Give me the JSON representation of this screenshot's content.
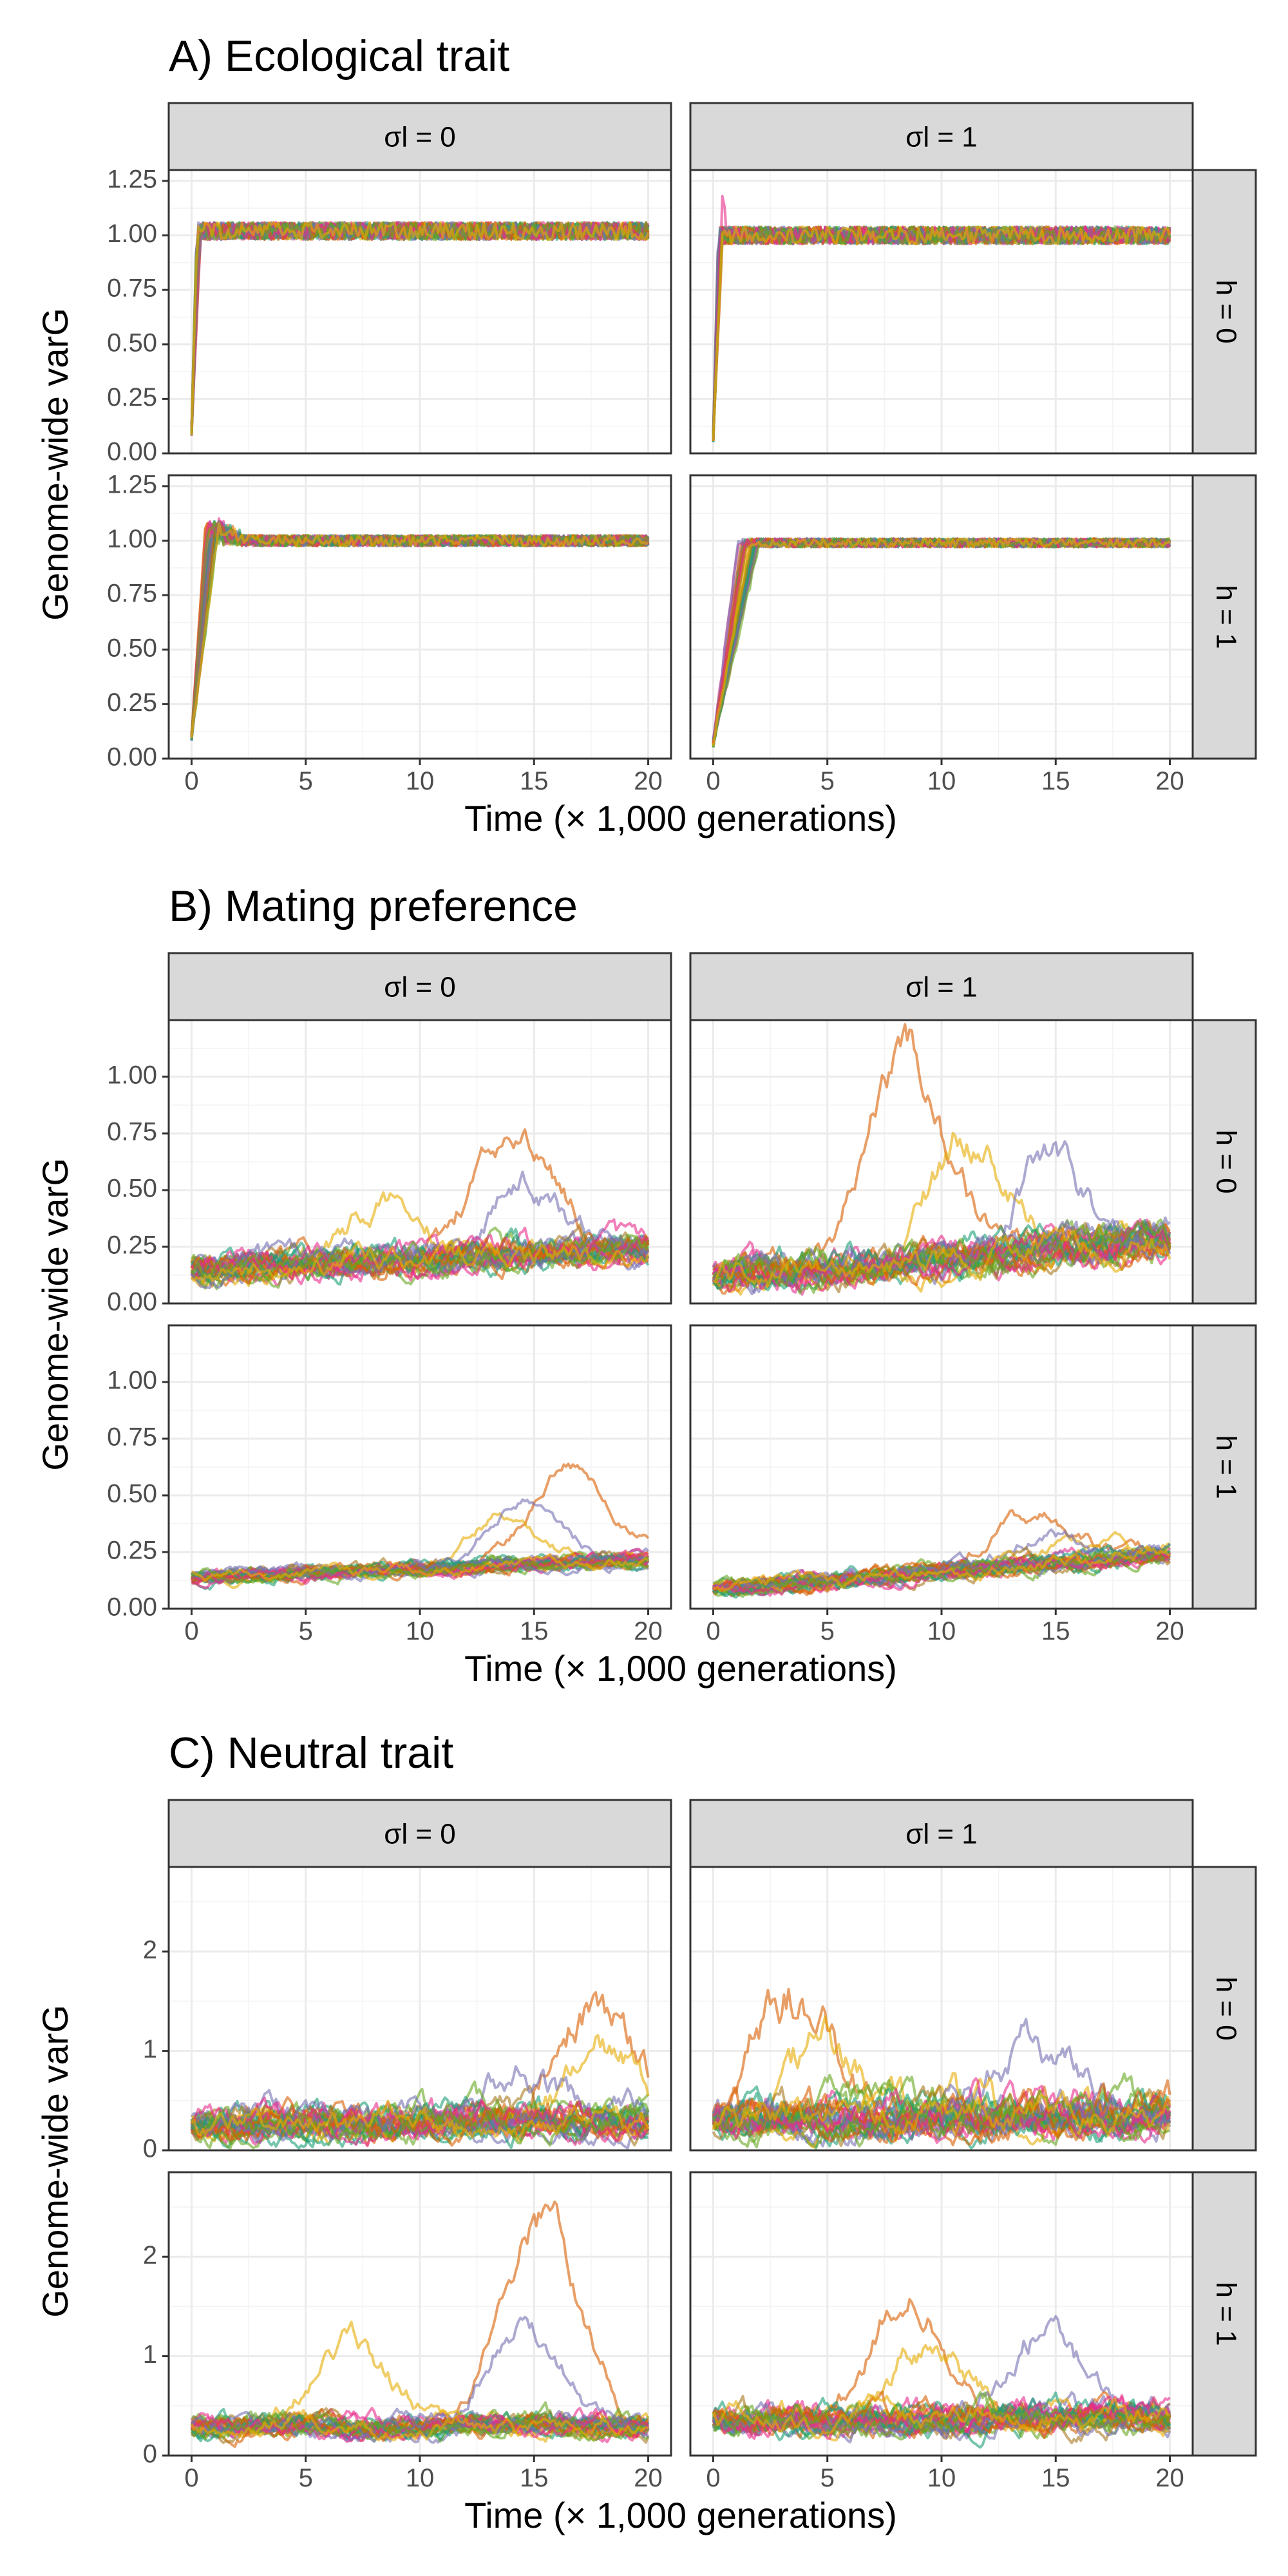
{
  "colors": [
    "#1b9e77",
    "#d95f02",
    "#7570b3",
    "#e7298a",
    "#66a61e",
    "#e6ab02",
    "#a6761d",
    "#1b9e77",
    "#d95f02",
    "#7570b3",
    "#e7298a",
    "#66a61e"
  ],
  "chart_data": [
    {
      "type": "line",
      "title": "A) Ecological trait",
      "xlabel": "Time (× 1,000 generations)",
      "ylabel": "Genome-wide varG",
      "xlim": [
        -1,
        21
      ],
      "x_ticks": [
        "0",
        "5",
        "10",
        "15",
        "20"
      ],
      "x_tick_values": [
        0,
        5,
        10,
        15,
        20
      ],
      "ylim": [
        0,
        1.3
      ],
      "y_ticks": [
        "0.00",
        "0.25",
        "0.50",
        "0.75",
        "1.00",
        "1.25"
      ],
      "y_tick_values": [
        0,
        0.25,
        0.5,
        0.75,
        1.0,
        1.25
      ],
      "column_strips": [
        "σl = 0",
        "σl = 1"
      ],
      "row_strips": [
        "h = 0",
        "h = 1"
      ],
      "grid": true,
      "facets": [
        {
          "row": 0,
          "col": 0,
          "model": "eco",
          "profile": {
            "start": 0.1,
            "plateau": 1.02,
            "rise_end": 0.3,
            "noise": 0.04
          }
        },
        {
          "row": 0,
          "col": 1,
          "model": "eco",
          "profile": {
            "start": 0.07,
            "plateau": 1.0,
            "rise_end": 0.3,
            "noise": 0.04,
            "spike": 1.23
          }
        },
        {
          "row": 1,
          "col": 0,
          "model": "eco",
          "profile": {
            "start": 0.1,
            "plateau": 1.0,
            "rise_end": 0.8,
            "noise": 0.025,
            "overshoot": 1.1
          }
        },
        {
          "row": 1,
          "col": 1,
          "model": "eco",
          "profile": {
            "start": 0.07,
            "plateau": 0.99,
            "rise_end": 1.5,
            "noise": 0.02
          }
        }
      ],
      "series_count": 30
    },
    {
      "type": "line",
      "title": "B) Mating preference",
      "xlabel": "Time (× 1,000 generations)",
      "ylabel": "Genome-wide varG",
      "xlim": [
        -1,
        21
      ],
      "x_ticks": [
        "0",
        "5",
        "10",
        "15",
        "20"
      ],
      "x_tick_values": [
        0,
        5,
        10,
        15,
        20
      ],
      "ylim": [
        0,
        1.25
      ],
      "y_ticks": [
        "0.00",
        "0.25",
        "0.50",
        "0.75",
        "1.00"
      ],
      "y_tick_values": [
        0,
        0.25,
        0.5,
        0.75,
        1.0
      ],
      "column_strips": [
        "σl = 0",
        "σl = 1"
      ],
      "row_strips": [
        "h = 0",
        "h = 1"
      ],
      "grid": true,
      "facets": [
        {
          "row": 0,
          "col": 0,
          "model": "walk",
          "profile": {
            "base0": 0.15,
            "base1": 0.25,
            "vol": 0.025,
            "peak": 0.83,
            "peak_t": 13.5
          }
        },
        {
          "row": 0,
          "col": 1,
          "model": "walk",
          "profile": {
            "base0": 0.12,
            "base1": 0.28,
            "vol": 0.03,
            "peak": 1.18,
            "peak_t": 7.8
          }
        },
        {
          "row": 1,
          "col": 0,
          "model": "walk",
          "profile": {
            "base0": 0.14,
            "base1": 0.22,
            "vol": 0.012,
            "peak": 0.68,
            "peak_t": 16.0
          }
        },
        {
          "row": 1,
          "col": 1,
          "model": "walk",
          "profile": {
            "base0": 0.09,
            "base1": 0.25,
            "vol": 0.015,
            "peak": 0.43,
            "peak_t": 13.5
          }
        }
      ],
      "series_count": 30
    },
    {
      "type": "line",
      "title": "C) Neutral trait",
      "xlabel": "Time (× 1,000 generations)",
      "ylabel": "Genome-wide varG",
      "xlim": [
        -1,
        21
      ],
      "x_ticks": [
        "0",
        "5",
        "10",
        "15",
        "20"
      ],
      "x_tick_values": [
        0,
        5,
        10,
        15,
        20
      ],
      "ylim": [
        0,
        2.85
      ],
      "y_ticks": [
        "0",
        "1",
        "2"
      ],
      "y_tick_values": [
        0,
        1,
        2
      ],
      "column_strips": [
        "σl = 0",
        "σl = 1"
      ],
      "row_strips": [
        "h = 0",
        "h = 1"
      ],
      "grid": true,
      "facets": [
        {
          "row": 0,
          "col": 0,
          "model": "walk",
          "profile": {
            "base0": 0.25,
            "base1": 0.3,
            "vol": 0.06,
            "peak": 1.65,
            "peak_t": 17.0
          }
        },
        {
          "row": 0,
          "col": 1,
          "model": "walk",
          "profile": {
            "base0": 0.3,
            "base1": 0.35,
            "vol": 0.07,
            "peak": 1.8,
            "peak_t": 2.8
          }
        },
        {
          "row": 1,
          "col": 0,
          "model": "walk",
          "profile": {
            "base0": 0.28,
            "base1": 0.3,
            "vol": 0.04,
            "peak": 2.65,
            "peak_t": 14.6
          }
        },
        {
          "row": 1,
          "col": 1,
          "model": "walk",
          "profile": {
            "base0": 0.35,
            "base1": 0.38,
            "vol": 0.05,
            "peak": 1.9,
            "peak_t": 8.0
          }
        }
      ],
      "series_count": 30
    }
  ]
}
